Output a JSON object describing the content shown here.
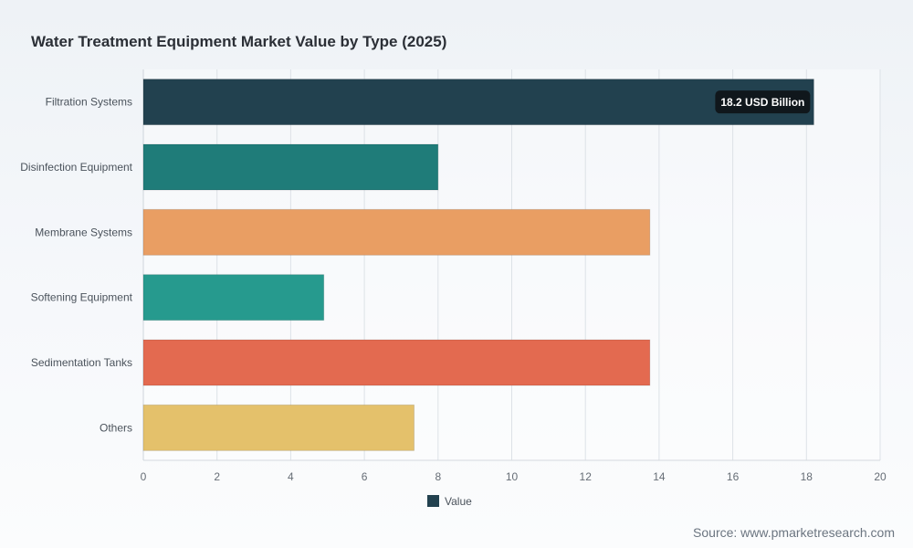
{
  "chart_data": {
    "type": "bar",
    "orientation": "horizontal",
    "title": "Water Treatment Equipment Market Value by Type (2025)",
    "categories": [
      "Filtration Systems",
      "Disinfection Equipment",
      "Membrane Systems",
      "Softening Equipment",
      "Sedimentation Tanks",
      "Others"
    ],
    "series": [
      {
        "name": "Value",
        "values": [
          18.2,
          8.0,
          13.75,
          4.9,
          13.75,
          7.35
        ]
      }
    ],
    "bar_colors": [
      "#22414f",
      "#1f7c79",
      "#e99e63",
      "#269a8e",
      "#e36a50",
      "#e4c16b"
    ],
    "legend_color": "#22414f",
    "xlim": [
      0,
      20
    ],
    "x_ticks": [
      "0",
      "2",
      "4",
      "6",
      "8",
      "10",
      "12",
      "14",
      "16",
      "18",
      "20"
    ],
    "grid": true,
    "legend_position": "bottom",
    "tooltip": {
      "category_index": 0,
      "text": "18.2 USD Billion"
    }
  },
  "source": "Source: www.pmarketresearch.com"
}
